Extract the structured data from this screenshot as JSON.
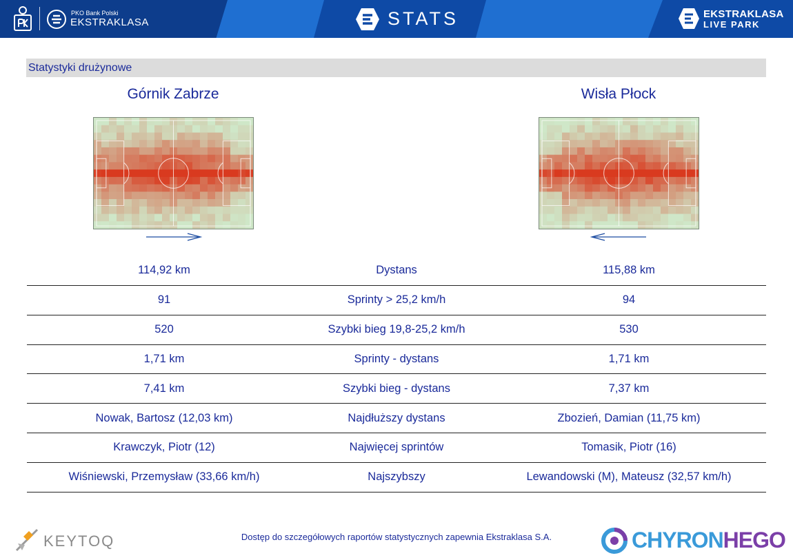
{
  "header": {
    "bank_small": "PKO Bank Polski",
    "league_name": "EKSTRAKLASA",
    "app_title": "STATS",
    "livepark_line1": "EKSTRAKLASA",
    "livepark_line2": "LIVE PARK",
    "icons": [
      "pko-logo-icon",
      "ekstraklasa-shield-icon",
      "stats-e-icon",
      "livepark-e-icon"
    ]
  },
  "section_title": "Statystyki drużynowe",
  "teams": {
    "home": {
      "name": "Górnik Zabrze",
      "attack_direction": "right"
    },
    "away": {
      "name": "Wisła Płock",
      "attack_direction": "left"
    }
  },
  "stats": [
    {
      "home": "114,92 km",
      "label": "Dystans",
      "away": "115,88 km"
    },
    {
      "home": "91",
      "label": "Sprinty > 25,2 km/h",
      "away": "94"
    },
    {
      "home": "520",
      "label": "Szybki bieg 19,8-25,2 km/h",
      "away": "530"
    },
    {
      "home": "1,71 km",
      "label": "Sprinty - dystans",
      "away": "1,71 km"
    },
    {
      "home": "7,41 km",
      "label": "Szybki bieg - dystans",
      "away": "7,37 km"
    },
    {
      "home": "Nowak, Bartosz (12,03 km)",
      "label": "Najdłuższy dystans",
      "away": "Zbozień, Damian (11,75 km)"
    },
    {
      "home": "Krawczyk, Piotr (12)",
      "label": "Najwięcej sprintów",
      "away": "Tomasik, Piotr (16)"
    },
    {
      "home": "Wiśniewski, Przemysław (33,66 km/h)",
      "label": "Najszybszy",
      "away": "Lewandowski (M), Mateusz (32,57 km/h)"
    }
  ],
  "footer": {
    "note": "Dostęp do szczegółowych raportów statystycznych zapewnia Ekstraklasa S.A.",
    "keytoq": "KEYTOQ",
    "chyron_part1": "CHYRON",
    "chyron_part2": "HEGO"
  },
  "colors": {
    "header_blue": "#1f6fd1",
    "header_dark": "#0d3d8c",
    "text_blue": "#1a2a9a",
    "heat_low": "#cfe7c8",
    "heat_high": "#d93a1f"
  }
}
